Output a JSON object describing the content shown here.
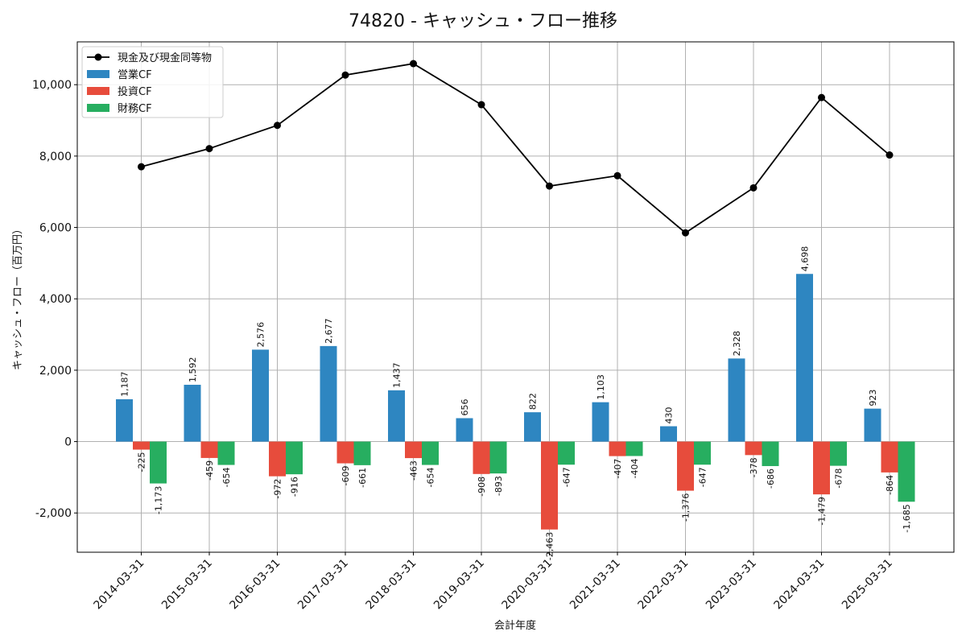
{
  "chart_data": {
    "type": "bar",
    "title": "74820 - キャッシュ・フロー推移",
    "xlabel": "会計年度",
    "ylabel": "キャッシュ・フロー（百万円）",
    "ylim": [
      -3100,
      11200
    ],
    "yticks": [
      -2000,
      0,
      2000,
      4000,
      6000,
      8000,
      10000
    ],
    "ytick_labels": [
      "-2,000",
      "0",
      "2,000",
      "4,000",
      "6,000",
      "8,000",
      "10,000"
    ],
    "grid": true,
    "legend_position": "top-left",
    "categories": [
      "2014-03-31",
      "2015-03-31",
      "2016-03-31",
      "2017-03-31",
      "2018-03-31",
      "2019-03-31",
      "2020-03-31",
      "2021-03-31",
      "2022-03-31",
      "2023-03-31",
      "2024-03-31",
      "2025-03-31"
    ],
    "series": [
      {
        "name": "営業CF",
        "kind": "bar",
        "color": "#2e86c1",
        "values": [
          1187,
          1592,
          2576,
          2677,
          1437,
          656,
          822,
          1103,
          430,
          2328,
          4698,
          923
        ],
        "labels": [
          "1,187",
          "1,592",
          "2,576",
          "2,677",
          "1,437",
          "656",
          "822",
          "1,103",
          "430",
          "2,328",
          "4,698",
          "923"
        ]
      },
      {
        "name": "投資CF",
        "kind": "bar",
        "color": "#e74c3c",
        "values": [
          -225,
          -459,
          -972,
          -609,
          -463,
          -908,
          -2463,
          -407,
          -1376,
          -378,
          -1479,
          -864
        ],
        "labels": [
          "-225",
          "-459",
          "-972",
          "-609",
          "-463",
          "-908",
          "-2,463",
          "-407",
          "-1,376",
          "-378",
          "-1,479",
          "-864"
        ]
      },
      {
        "name": "財務CF",
        "kind": "bar",
        "color": "#27ae60",
        "values": [
          -1173,
          -654,
          -916,
          -661,
          -654,
          -893,
          -647,
          -404,
          -647,
          -686,
          -678,
          -1685
        ],
        "labels": [
          "-1,173",
          "-654",
          "-916",
          "-661",
          "-654",
          "-893",
          "-647",
          "-404",
          "-647",
          "-686",
          "-678",
          "-1,685"
        ]
      },
      {
        "name": "現金及び現金同等物",
        "kind": "line",
        "color": "#000000",
        "values": [
          7700,
          8210,
          8860,
          10270,
          10590,
          9440,
          7160,
          7450,
          5850,
          7110,
          9640,
          8030
        ]
      }
    ]
  }
}
